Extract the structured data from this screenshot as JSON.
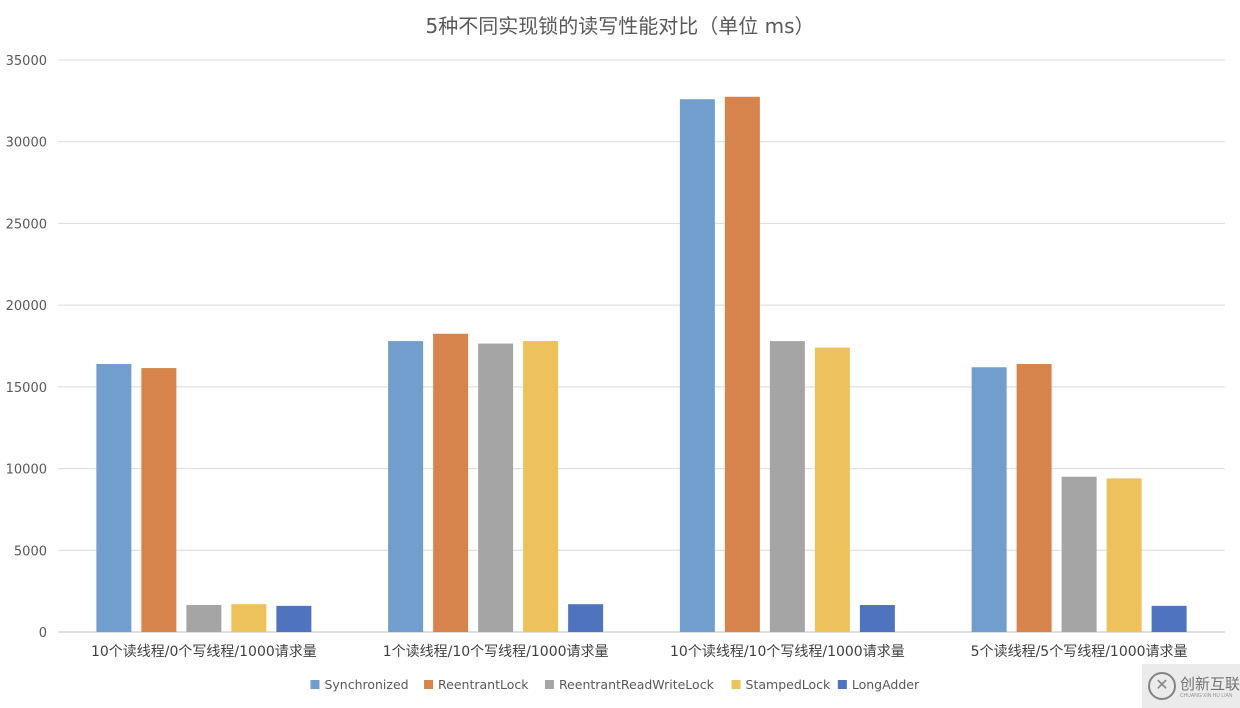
{
  "chart_data": {
    "type": "bar",
    "title": "5种不同实现锁的读写性能对比（单位 ms）",
    "xlabel": "",
    "ylabel": "",
    "ylim": [
      0,
      35000
    ],
    "yticks": [
      0,
      5000,
      10000,
      15000,
      20000,
      25000,
      30000,
      35000
    ],
    "grid": true,
    "legend_position": "bottom",
    "categories": [
      "10个读线程/0个写线程/1000请求量",
      "1个读线程/10个写线程/1000请求量",
      "10个读线程/10个写线程/1000请求量",
      "5个读线程/5个写线程/1000请求量"
    ],
    "series": [
      {
        "name": "Synchronized",
        "color": "#729ece",
        "values": [
          16400,
          17800,
          32600,
          16200
        ]
      },
      {
        "name": "ReentrantLock",
        "color": "#d6844c",
        "values": [
          16150,
          18250,
          32750,
          16400
        ]
      },
      {
        "name": "ReentrantReadWriteLock",
        "color": "#a5a5a5",
        "values": [
          1650,
          17650,
          17800,
          9500
        ]
      },
      {
        "name": "StampedLock",
        "color": "#edc15b",
        "values": [
          1700,
          17800,
          17400,
          9400
        ]
      },
      {
        "name": "LongAdder",
        "color": "#4f73be",
        "values": [
          1600,
          1700,
          1650,
          1600
        ]
      }
    ]
  },
  "watermark": {
    "text": "创新互联",
    "sub": "CHUANG XIN HU LIAN"
  }
}
